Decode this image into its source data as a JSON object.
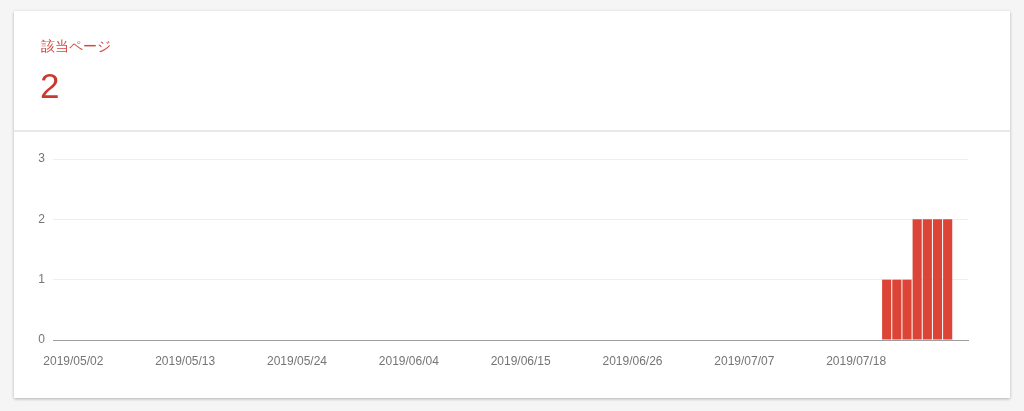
{
  "chart_data": {
    "type": "bar",
    "title": "該当ページ",
    "subtitle": "2",
    "x": [
      "2019-07-21",
      "2019-07-22",
      "2019-07-23",
      "2019-07-24",
      "2019-07-25",
      "2019-07-26",
      "2019-07-27"
    ],
    "values": [
      1,
      1,
      1,
      2,
      2,
      2,
      2
    ],
    "color": "#db4437",
    "xlim": [
      "2019-04-30",
      "2019-07-29"
    ],
    "xticks": [
      {
        "value": "2019-05-02",
        "label": "2019/05/02"
      },
      {
        "value": "2019-05-13",
        "label": "2019/05/13"
      },
      {
        "value": "2019-05-24",
        "label": "2019/05/24"
      },
      {
        "value": "2019-06-04",
        "label": "2019/06/04"
      },
      {
        "value": "2019-06-15",
        "label": "2019/06/15"
      },
      {
        "value": "2019-06-26",
        "label": "2019/06/26"
      },
      {
        "value": "2019-07-07",
        "label": "2019/07/07"
      },
      {
        "value": "2019-07-18",
        "label": "2019/07/18"
      }
    ],
    "ylim": [
      0,
      3
    ],
    "yticks": [
      0,
      1,
      2,
      3
    ],
    "grid": "y"
  }
}
